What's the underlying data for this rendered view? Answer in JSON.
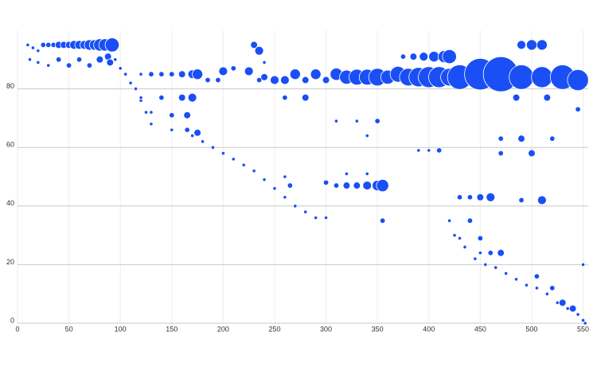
{
  "chart_data": {
    "type": "bubble",
    "color": "#1a4ff5",
    "xlim": [
      0,
      555
    ],
    "ylim": [
      0,
      100
    ],
    "xticks": [
      0,
      50,
      100,
      150,
      200,
      250,
      300,
      350,
      400,
      450,
      500,
      550
    ],
    "yticks": [
      0,
      20,
      40,
      60,
      80
    ],
    "grid": true,
    "x": [
      10,
      15,
      20,
      25,
      30,
      35,
      40,
      45,
      50,
      55,
      60,
      65,
      70,
      75,
      80,
      85,
      92,
      12,
      20,
      30,
      40,
      50,
      60,
      70,
      80,
      88,
      90,
      95,
      100,
      105,
      110,
      115,
      120,
      125,
      130,
      120,
      130,
      140,
      150,
      160,
      170,
      175,
      185,
      195,
      200,
      210,
      225,
      235,
      240,
      230,
      235,
      240,
      250,
      260,
      270,
      280,
      290,
      300,
      310,
      320,
      330,
      340,
      350,
      360,
      370,
      380,
      390,
      400,
      410,
      420,
      430,
      450,
      470,
      490,
      510,
      530,
      545,
      375,
      385,
      395,
      405,
      415,
      420,
      490,
      500,
      510,
      120,
      140,
      160,
      170,
      260,
      280,
      485,
      515,
      545,
      130,
      150,
      165,
      150,
      165,
      175,
      310,
      330,
      350,
      340,
      170,
      180,
      190,
      200,
      210,
      220,
      230,
      240,
      250,
      260,
      270,
      280,
      290,
      300,
      300,
      310,
      320,
      330,
      340,
      350,
      355,
      260,
      265,
      355,
      390,
      400,
      410,
      320,
      340,
      430,
      440,
      450,
      460,
      490,
      510,
      470,
      490,
      520,
      470,
      500,
      420,
      440,
      430,
      450,
      450,
      460,
      470,
      425,
      435,
      445,
      455,
      465,
      475,
      485,
      495,
      505,
      515,
      525,
      535,
      545,
      550,
      552,
      505,
      520,
      530,
      540,
      550
    ],
    "values": [
      95,
      94,
      93,
      95,
      95,
      95,
      95,
      95,
      95,
      95,
      95,
      95,
      95,
      95,
      95,
      95,
      95,
      90,
      89,
      88,
      90,
      88,
      90,
      88,
      90,
      91,
      89,
      90,
      87,
      85,
      82,
      80,
      76,
      72,
      68,
      85,
      85,
      85,
      85,
      85,
      85,
      85,
      83,
      83,
      86,
      87,
      86,
      83,
      84,
      95,
      93,
      89,
      83,
      83,
      85,
      83,
      85,
      83,
      85,
      84,
      84,
      84,
      84,
      84,
      85,
      84,
      84,
      84,
      84,
      84,
      84,
      85,
      85,
      84,
      84,
      84,
      83,
      91,
      91,
      91,
      91,
      91,
      91,
      95,
      95,
      95,
      77,
      77,
      77,
      77,
      77,
      77,
      77,
      77,
      73,
      72,
      71,
      71,
      66,
      66,
      65,
      69,
      69,
      69,
      64,
      64,
      62,
      60,
      58,
      56,
      54,
      52,
      49,
      46,
      43,
      40,
      38,
      36,
      36,
      48,
      47,
      47,
      47,
      47,
      47,
      47,
      50,
      47,
      35,
      59,
      59,
      59,
      51,
      51,
      43,
      43,
      43,
      43,
      42,
      42,
      63,
      63,
      63,
      58,
      58,
      35,
      35,
      29,
      29,
      24,
      24,
      24,
      30,
      26,
      22,
      20,
      19,
      17,
      15,
      13,
      12,
      10,
      7,
      5,
      3,
      1,
      0,
      16,
      12,
      7,
      5,
      20
    ],
    "sizes": [
      2,
      2,
      2,
      3,
      3,
      3,
      4,
      4,
      4,
      5,
      5,
      5,
      6,
      6,
      7,
      7,
      8,
      2,
      2,
      2,
      3,
      3,
      3,
      3,
      4,
      4,
      4,
      2,
      2,
      2,
      2,
      2,
      2,
      2,
      2,
      2,
      3,
      3,
      3,
      4,
      5,
      6,
      3,
      3,
      5,
      3,
      5,
      3,
      4,
      4,
      5,
      2,
      5,
      5,
      6,
      4,
      6,
      4,
      7,
      8,
      9,
      9,
      10,
      8,
      9,
      10,
      11,
      12,
      12,
      10,
      14,
      18,
      20,
      14,
      12,
      14,
      12,
      3,
      4,
      5,
      6,
      7,
      8,
      5,
      6,
      6,
      2,
      3,
      4,
      5,
      3,
      4,
      4,
      4,
      3,
      2,
      3,
      4,
      2,
      3,
      4,
      2,
      2,
      3,
      2,
      2,
      2,
      2,
      2,
      2,
      2,
      2,
      2,
      2,
      2,
      2,
      2,
      2,
      2,
      3,
      3,
      4,
      4,
      5,
      6,
      7,
      2,
      3,
      3,
      2,
      2,
      3,
      2,
      2,
      3,
      3,
      4,
      5,
      3,
      5,
      3,
      4,
      3,
      3,
      4,
      2,
      3,
      2,
      3,
      2,
      3,
      4,
      2,
      2,
      2,
      2,
      2,
      2,
      2,
      2,
      2,
      2,
      2,
      2,
      2,
      2,
      2,
      3,
      3,
      4,
      4,
      2
    ]
  }
}
